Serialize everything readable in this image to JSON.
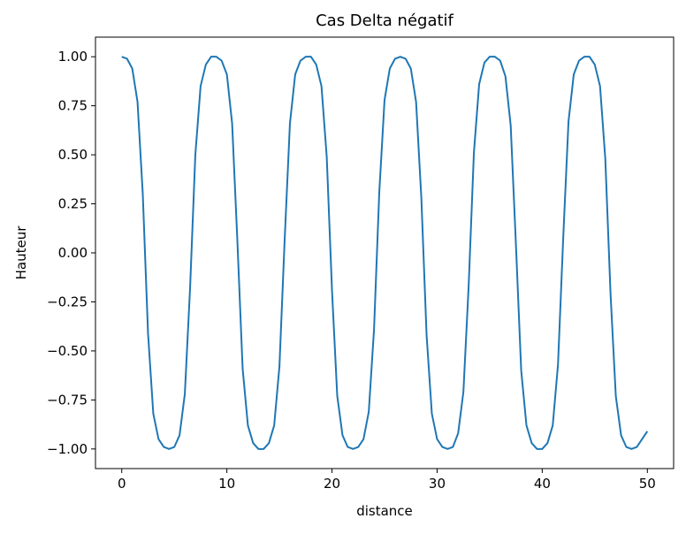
{
  "chart_data": {
    "type": "line",
    "title": "Cas Delta négatif",
    "xlabel": "distance",
    "ylabel": "Hauteur",
    "x": [
      0,
      0.5,
      1,
      1.5,
      2,
      2.5,
      3,
      3.5,
      4,
      4.5,
      5,
      5.5,
      6,
      6.5,
      7,
      7.5,
      8,
      8.5,
      9,
      9.5,
      10,
      10.5,
      11,
      11.5,
      12,
      12.5,
      13,
      13.5,
      14,
      14.5,
      15,
      15.5,
      16,
      16.5,
      17,
      17.5,
      18,
      18.5,
      19,
      19.5,
      20,
      20.5,
      21,
      21.5,
      22,
      22.5,
      23,
      23.5,
      24,
      24.5,
      25,
      25.5,
      26,
      26.5,
      27,
      27.5,
      28,
      28.5,
      29,
      29.5,
      30,
      30.5,
      31,
      31.5,
      32,
      32.5,
      33,
      33.5,
      34,
      34.5,
      35,
      35.5,
      36,
      36.5,
      37,
      37.5,
      38,
      38.5,
      39,
      39.5,
      40,
      40.5,
      41,
      41.5,
      42,
      42.5,
      43,
      43.5,
      44,
      44.5,
      45,
      45.5,
      46,
      46.5,
      47,
      47.5,
      48,
      48.5,
      49,
      49.5,
      50
    ],
    "series": [
      {
        "color": "#1f77b4",
        "values": [
          1.0,
          0.99,
          0.94,
          0.77,
          0.3,
          -0.41,
          -0.82,
          -0.95,
          -0.99,
          -1.0,
          -0.99,
          -0.93,
          -0.72,
          -0.18,
          0.5,
          0.85,
          0.96,
          1.0,
          1.0,
          0.98,
          0.91,
          0.66,
          0.06,
          -0.59,
          -0.88,
          -0.97,
          -1.0,
          -1.0,
          -0.97,
          -0.88,
          -0.58,
          0.07,
          0.66,
          0.91,
          0.98,
          1.0,
          1.0,
          0.96,
          0.85,
          0.49,
          -0.19,
          -0.73,
          -0.93,
          -0.99,
          -1.0,
          -0.99,
          -0.95,
          -0.81,
          -0.39,
          0.31,
          0.78,
          0.94,
          0.99,
          1.0,
          0.99,
          0.94,
          0.77,
          0.28,
          -0.42,
          -0.82,
          -0.95,
          -0.99,
          -1.0,
          -0.99,
          -0.92,
          -0.71,
          -0.17,
          0.51,
          0.86,
          0.97,
          1.0,
          1.0,
          0.98,
          0.9,
          0.65,
          0.04,
          -0.6,
          -0.88,
          -0.97,
          -1.0,
          -1.0,
          -0.97,
          -0.88,
          -0.57,
          0.08,
          0.67,
          0.91,
          0.98,
          1.0,
          1.0,
          0.96,
          0.85,
          0.48,
          -0.21,
          -0.73,
          -0.93,
          -0.99,
          -1.0,
          -0.99,
          -0.95,
          -0.91
        ]
      }
    ],
    "xlim": [
      -2.5,
      52.5
    ],
    "xticks": [
      0,
      10,
      20,
      30,
      40,
      50
    ],
    "ylim": [
      -1.1,
      1.1
    ],
    "yticks": [
      {
        "value": -1,
        "label": "−1.00"
      },
      {
        "value": -0.75,
        "label": "−0.75"
      },
      {
        "value": -0.5,
        "label": "−0.50"
      },
      {
        "value": -0.25,
        "label": "−0.25"
      },
      {
        "value": 0,
        "label": "0.00"
      },
      {
        "value": 0.25,
        "label": "0.25"
      },
      {
        "value": 0.5,
        "label": "0.50"
      },
      {
        "value": 0.75,
        "label": "0.75"
      },
      {
        "value": 1,
        "label": "1.00"
      }
    ],
    "grid": false
  }
}
